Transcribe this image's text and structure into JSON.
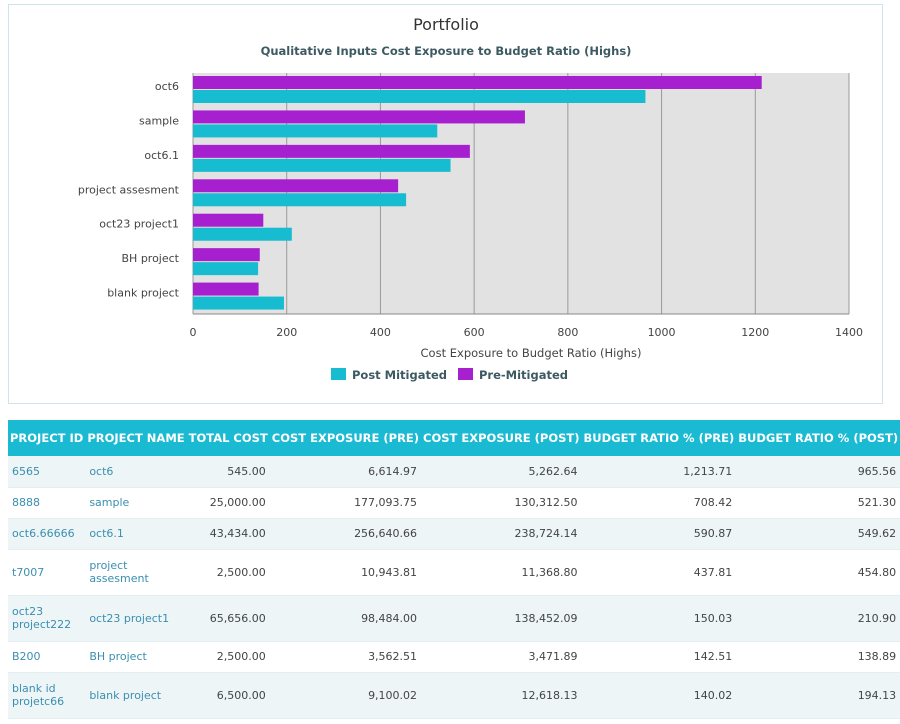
{
  "chart_data": {
    "type": "bar",
    "orientation": "horizontal",
    "title": "Portfolio",
    "subtitle": "Qualitative Inputs Cost Exposure to Budget Ratio (Highs)",
    "xlabel": "Cost Exposure to Budget Ratio (Highs)",
    "ylabel": "",
    "xlim": [
      0,
      1400
    ],
    "xticks": [
      "0",
      "200",
      "400",
      "600",
      "800",
      "1000",
      "1200",
      "1400"
    ],
    "grid": true,
    "legend": "bottom-center",
    "categories": [
      "oct6",
      "sample",
      "oct6.1",
      "project assesment",
      "oct23 project1",
      "BH project",
      "blank project"
    ],
    "series": [
      {
        "name": "Pre-Mitigated",
        "color": "#a720cf",
        "values": [
          1213.71,
          708.42,
          590.87,
          437.81,
          150.03,
          142.51,
          140.02
        ]
      },
      {
        "name": "Post Mitigated",
        "color": "#17bcd0",
        "values": [
          965.56,
          521.3,
          549.62,
          454.8,
          210.9,
          138.89,
          194.13
        ]
      }
    ],
    "legend_items": [
      "Post Mitigated",
      "Pre-Mitigated"
    ]
  },
  "table": {
    "headers": [
      "PROJECT ID",
      "PROJECT NAME",
      "TOTAL COST",
      "COST EXPOSURE (PRE)",
      "COST EXPOSURE (POST)",
      "BUDGET RATIO % (PRE)",
      "BUDGET RATIO % (POST)"
    ],
    "rows": [
      [
        "6565",
        "oct6",
        "545.00",
        "6,614.97",
        "5,262.64",
        "1,213.71",
        "965.56"
      ],
      [
        "8888",
        "sample",
        "25,000.00",
        "177,093.75",
        "130,312.50",
        "708.42",
        "521.30"
      ],
      [
        "oct6.66666",
        "oct6.1",
        "43,434.00",
        "256,640.66",
        "238,724.14",
        "590.87",
        "549.62"
      ],
      [
        "t7007",
        "project assesment",
        "2,500.00",
        "10,943.81",
        "11,368.80",
        "437.81",
        "454.80"
      ],
      [
        "oct23 project222",
        "oct23 project1",
        "65,656.00",
        "98,484.00",
        "138,452.09",
        "150.03",
        "210.90"
      ],
      [
        "B200",
        "BH project",
        "2,500.00",
        "3,562.51",
        "3,471.89",
        "142.51",
        "138.89"
      ],
      [
        "blank id projetc66",
        "blank project",
        "6,500.00",
        "9,100.02",
        "12,618.13",
        "140.02",
        "194.13"
      ]
    ]
  }
}
